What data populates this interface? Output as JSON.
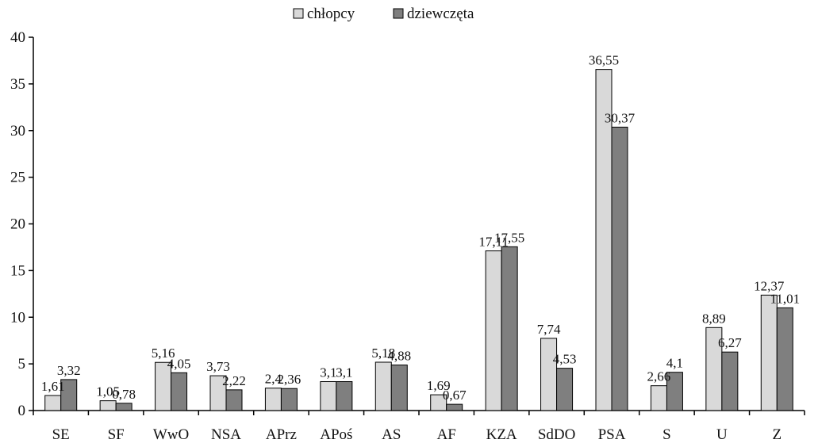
{
  "chart_data": {
    "type": "bar",
    "title": "",
    "xlabel": "",
    "ylabel": "",
    "ylim": [
      0,
      40
    ],
    "yticks": [
      "0",
      "5",
      "10",
      "15",
      "20",
      "25",
      "30",
      "35",
      "40"
    ],
    "grid": false,
    "legend_position": "top-center",
    "categories": [
      "SE",
      "SF",
      "WwO",
      "NSA",
      "APrz",
      "APoś",
      "AS",
      "AF",
      "KZA",
      "SdDO",
      "PSA",
      "S",
      "U",
      "Z"
    ],
    "series": [
      {
        "name": "chłopcy",
        "color": "#d9d9d9",
        "values": [
          1.61,
          1.05,
          5.16,
          3.73,
          2.4,
          3.1,
          5.18,
          1.69,
          17.11,
          7.74,
          36.55,
          2.66,
          8.89,
          12.37
        ],
        "labels": [
          "1,61",
          "1,05",
          "5,16",
          "3,73",
          "2,4",
          "3,1",
          "5,18",
          "1,69",
          "17,11",
          "7,74",
          "36,55",
          "2,66",
          "8,89",
          "12,37"
        ]
      },
      {
        "name": "dziewczęta",
        "color": "#7f7f7f",
        "values": [
          3.32,
          0.78,
          4.05,
          2.22,
          2.36,
          3.1,
          4.88,
          0.67,
          17.55,
          4.53,
          30.37,
          4.1,
          6.27,
          11.01
        ],
        "labels": [
          "3,32",
          "0,78",
          "4,05",
          "2,22",
          "2,36",
          "3,1",
          "4,88",
          "0,67",
          "17,55",
          "4,53",
          "30,37",
          "4,1",
          "6,27",
          "11,01"
        ]
      }
    ]
  }
}
